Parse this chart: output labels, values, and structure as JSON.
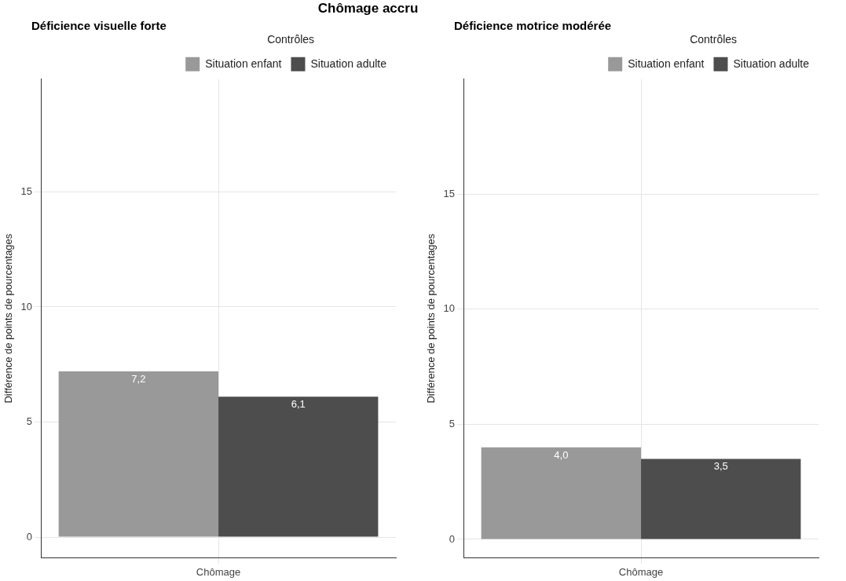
{
  "chart_data": [
    {
      "type": "bar",
      "title": "Chômage accru",
      "subtitle": "Déficience visuelle forte",
      "ylabel": "Différence de points de pourcentages",
      "categories": [
        "Chômage"
      ],
      "legend_title": "Contrôles",
      "legend": "top right",
      "grid": true,
      "ylim": [
        -0.9,
        19.9
      ],
      "yticks": [
        0,
        5,
        10,
        15
      ],
      "series": [
        {
          "name": "Situation enfant",
          "color": "#999999",
          "values": [
            7.2
          ],
          "value_labels": [
            "7,2"
          ]
        },
        {
          "name": "Situation adulte",
          "color": "#4d4d4d",
          "values": [
            6.1
          ],
          "value_labels": [
            "6,1"
          ]
        }
      ]
    },
    {
      "type": "bar",
      "subtitle": "Déficience motrice modérée",
      "ylabel": "Différence de points de pourcentages",
      "categories": [
        "Chômage"
      ],
      "legend_title": "Contrôles",
      "legend": "top right",
      "grid": true,
      "ylim": [
        -0.8,
        20
      ],
      "yticks": [
        0,
        5,
        10,
        15
      ],
      "series": [
        {
          "name": "Situation enfant",
          "color": "#999999",
          "values": [
            4.0
          ],
          "value_labels": [
            "4,0"
          ]
        },
        {
          "name": "Situation adulte",
          "color": "#4d4d4d",
          "values": [
            3.5
          ],
          "value_labels": [
            "3,5"
          ]
        }
      ]
    }
  ]
}
